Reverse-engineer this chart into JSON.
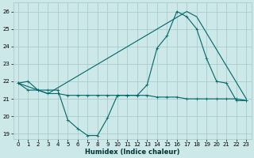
{
  "xlabel": "Humidex (Indice chaleur)",
  "bg_color": "#cce8e8",
  "grid_color": "#aacccc",
  "line_color": "#006666",
  "xlim": [
    -0.5,
    23.5
  ],
  "ylim": [
    18.7,
    26.5
  ],
  "xticks": [
    0,
    1,
    2,
    3,
    4,
    5,
    6,
    7,
    8,
    9,
    10,
    11,
    12,
    13,
    14,
    15,
    16,
    17,
    18,
    19,
    20,
    21,
    22,
    23
  ],
  "yticks": [
    19,
    20,
    21,
    22,
    23,
    24,
    25,
    26
  ],
  "line1_x": [
    0,
    1,
    2,
    3,
    4,
    5,
    6,
    7,
    8,
    9,
    10,
    11,
    12,
    13,
    14,
    15,
    16,
    17,
    18,
    19,
    20,
    21,
    22,
    23
  ],
  "line1_y": [
    21.9,
    22.0,
    21.5,
    21.5,
    21.5,
    19.8,
    19.3,
    18.9,
    18.9,
    19.9,
    21.2,
    21.2,
    21.2,
    21.8,
    23.9,
    24.6,
    26.0,
    25.7,
    25.0,
    23.3,
    22.0,
    21.9,
    20.9,
    20.9
  ],
  "line2_x": [
    0,
    1,
    2,
    3,
    4,
    5,
    6,
    7,
    8,
    9,
    10,
    11,
    12,
    13,
    14,
    15,
    16,
    17,
    18,
    19,
    20,
    21,
    22,
    23
  ],
  "line2_y": [
    21.9,
    21.5,
    21.5,
    21.3,
    21.3,
    21.2,
    21.2,
    21.2,
    21.2,
    21.2,
    21.2,
    21.2,
    21.2,
    21.2,
    21.1,
    21.1,
    21.1,
    21.0,
    21.0,
    21.0,
    21.0,
    21.0,
    21.0,
    20.9
  ],
  "line3_x": [
    0,
    3,
    17,
    18,
    23
  ],
  "line3_y": [
    21.9,
    21.3,
    26.0,
    25.7,
    21.0
  ]
}
